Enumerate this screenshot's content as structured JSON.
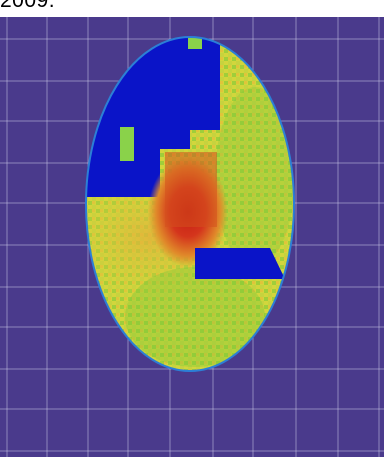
{
  "caption": {
    "text": "2009."
  },
  "colors": {
    "background": "#4a3a8c",
    "grid_line": "#c8c4e6",
    "masked_region": "#0a14c8",
    "coverage_low": "#66cc33",
    "coverage_mid": "#d6d63a",
    "coverage_high": "#d4351c"
  },
  "figure": {
    "description_tag": "coverage-heatmap",
    "regions": [
      {
        "name": "upper-left-masked-block",
        "color": "masked_region"
      },
      {
        "name": "center-hotspot",
        "color": "coverage_high"
      },
      {
        "name": "right-masked-block",
        "color": "masked_region"
      }
    ]
  }
}
